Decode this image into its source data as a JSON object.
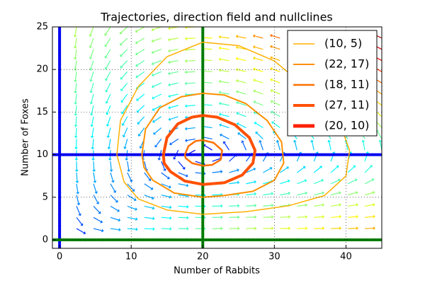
{
  "chart_data": {
    "type": "phase",
    "title": "Trajectories, direction field and nullclines",
    "xlabel": "Number of Rabbits",
    "ylabel": "Number of Foxes",
    "xlim": [
      -1,
      45
    ],
    "ylim": [
      -1,
      25
    ],
    "xticks": [
      0,
      10,
      20,
      30,
      40
    ],
    "yticks": [
      0,
      5,
      10,
      15,
      20,
      25
    ],
    "grid": true,
    "legend": "upper right",
    "nullclines": [
      {
        "axis": "x",
        "value": 0,
        "color": "#0000ff"
      },
      {
        "axis": "y",
        "value": 10,
        "color": "#0000ff"
      },
      {
        "axis": "x",
        "value": 20,
        "color": "#008000"
      },
      {
        "axis": "y",
        "value": 0,
        "color": "#008000"
      }
    ],
    "quiver": {
      "x": [
        0,
        2.37,
        4.74,
        7.11,
        9.47,
        11.84,
        14.21,
        16.58,
        18.95,
        21.32,
        23.68,
        26.05,
        28.42,
        30.79,
        33.16,
        35.53,
        37.89,
        40.26,
        42.63,
        45
      ],
      "y": [
        0,
        1.32,
        2.63,
        3.95,
        5.26,
        6.58,
        7.89,
        9.21,
        10.53,
        11.84,
        13.16,
        14.47,
        15.79,
        17.11,
        18.42,
        19.74,
        21.05,
        22.37,
        23.68,
        25
      ]
    },
    "series": [
      {
        "name": "(10, 5)",
        "color": "#ffb000",
        "width": 1.5,
        "x": [
          8,
          8.5,
          11,
          15,
          20,
          25,
          30,
          35,
          39,
          40.5,
          40,
          37,
          32,
          26,
          20,
          15,
          11,
          9,
          8
        ],
        "y": [
          10,
          14,
          18,
          21.5,
          23.2,
          22.8,
          21,
          17.5,
          14,
          10.5,
          7.5,
          5.2,
          4,
          3.3,
          3,
          3.5,
          4.8,
          6.8,
          10
        ]
      },
      {
        "name": "(22, 17)",
        "color": "#ff9000",
        "width": 2,
        "x": [
          11.5,
          12,
          14,
          17,
          20,
          23,
          26,
          29,
          31,
          31.3,
          30,
          27,
          23,
          20,
          16,
          13,
          11.8,
          11.5
        ],
        "y": [
          10,
          13,
          15.5,
          16.8,
          17.2,
          17,
          16,
          14,
          11.5,
          9,
          7,
          5.7,
          5.2,
          5,
          5.5,
          7,
          8.5,
          10
        ]
      },
      {
        "name": "(18, 11)",
        "color": "#ff7000",
        "width": 2.5,
        "x": [
          17.5,
          18,
          19,
          20,
          21.5,
          22.7,
          22.5,
          21.3,
          20,
          18.5,
          17.6,
          17.5
        ],
        "y": [
          10,
          11,
          11.6,
          11.7,
          11.4,
          10.5,
          9.4,
          8.8,
          8.7,
          9,
          9.6,
          10
        ]
      },
      {
        "name": "(27, 11)",
        "color": "#ff5000",
        "width": 4,
        "x": [
          14.5,
          15,
          16.5,
          18.5,
          20,
          22,
          24.5,
          26.5,
          27.3,
          27,
          25.5,
          23,
          20,
          17.5,
          15.5,
          14.6,
          14.5
        ],
        "y": [
          10,
          12,
          13.6,
          14.4,
          14.6,
          14.4,
          13.5,
          12,
          10.5,
          9,
          7.6,
          6.7,
          6.5,
          6.9,
          8,
          9,
          10
        ]
      },
      {
        "name": "(20, 10)",
        "color": "#ff2000",
        "width": 5,
        "x": [
          20
        ],
        "y": [
          10
        ]
      }
    ]
  }
}
